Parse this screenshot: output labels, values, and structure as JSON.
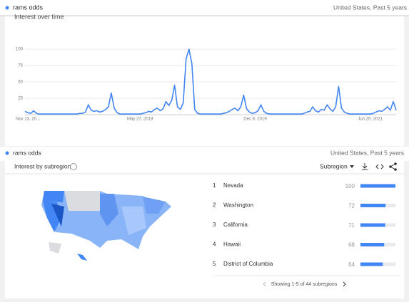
{
  "header": {
    "term": "rams odds",
    "scope": "United States, Past 5 years"
  },
  "chart_data": {
    "type": "line",
    "title": "Interest over time",
    "categories": [
      "Nov 13, 20...",
      null,
      null,
      null,
      null,
      null,
      null,
      null,
      null,
      null,
      null,
      null,
      null,
      null,
      null,
      null,
      null,
      null,
      null,
      null,
      null,
      null,
      null,
      null,
      null,
      null,
      null,
      null,
      null,
      null,
      null,
      null,
      null,
      null,
      null,
      null,
      null,
      null,
      null,
      null,
      "May 27, 2018",
      null,
      null,
      null,
      null,
      null,
      null,
      null,
      null,
      null,
      null,
      null,
      null,
      null,
      null,
      null,
      null,
      null,
      null,
      null,
      null,
      null,
      null,
      null,
      null,
      null,
      null,
      null,
      null,
      null,
      null,
      null,
      null,
      null,
      null,
      null,
      null,
      null,
      null,
      null,
      "Dec 8, 2019",
      null,
      null,
      null,
      null,
      null,
      null,
      null,
      null,
      null,
      null,
      null,
      null,
      null,
      null,
      null,
      null,
      null,
      null,
      null,
      null,
      null,
      null,
      null,
      null,
      null,
      null,
      null,
      null,
      null,
      null,
      null,
      null,
      null,
      null,
      null,
      null,
      null,
      null,
      null,
      "Jun 20, 2021",
      null,
      null,
      null,
      null,
      null,
      null,
      null,
      null,
      null
    ],
    "values": [
      5,
      3,
      2,
      6,
      2,
      1,
      1,
      1,
      1,
      1,
      1,
      1,
      1,
      1,
      1,
      1,
      1,
      1,
      1,
      2,
      2,
      4,
      15,
      7,
      5,
      6,
      4,
      5,
      8,
      12,
      33,
      10,
      3,
      1,
      1,
      1,
      1,
      1,
      1,
      1,
      1,
      2,
      3,
      5,
      4,
      8,
      10,
      6,
      9,
      20,
      14,
      22,
      45,
      12,
      8,
      18,
      85,
      100,
      78,
      8,
      2,
      1,
      1,
      1,
      1,
      1,
      1,
      1,
      1,
      2,
      3,
      5,
      8,
      10,
      6,
      12,
      30,
      9,
      4,
      2,
      3,
      6,
      15,
      5,
      2,
      1,
      1,
      1,
      1,
      1,
      1,
      1,
      1,
      1,
      1,
      1,
      1,
      2,
      4,
      5,
      12,
      6,
      4,
      8,
      7,
      15,
      9,
      5,
      12,
      43,
      10,
      4,
      2,
      1,
      1,
      1,
      1,
      1,
      1,
      1,
      1,
      2,
      4,
      6,
      5,
      8,
      12,
      7,
      20,
      7
    ],
    "color": "#4285f4",
    "ylim": [
      0,
      100
    ],
    "yticks": [
      25,
      50,
      75,
      100
    ],
    "grid": true
  },
  "subregion": {
    "header": {
      "term": "rams odds",
      "scope": "United States, Past 5 years"
    },
    "title": "Interest by subregion",
    "dropdown": "Subregion",
    "rows": [
      {
        "rank": 1,
        "name": "Nevada",
        "value": 100
      },
      {
        "rank": 2,
        "name": "Washington",
        "value": 72
      },
      {
        "rank": 3,
        "name": "California",
        "value": 71
      },
      {
        "rank": 4,
        "name": "Hawaii",
        "value": 68
      },
      {
        "rank": 5,
        "name": "District of Columbia",
        "value": 64
      }
    ],
    "footer": "Showing 1-5 of 44 subregions",
    "color": "#4285f4"
  }
}
